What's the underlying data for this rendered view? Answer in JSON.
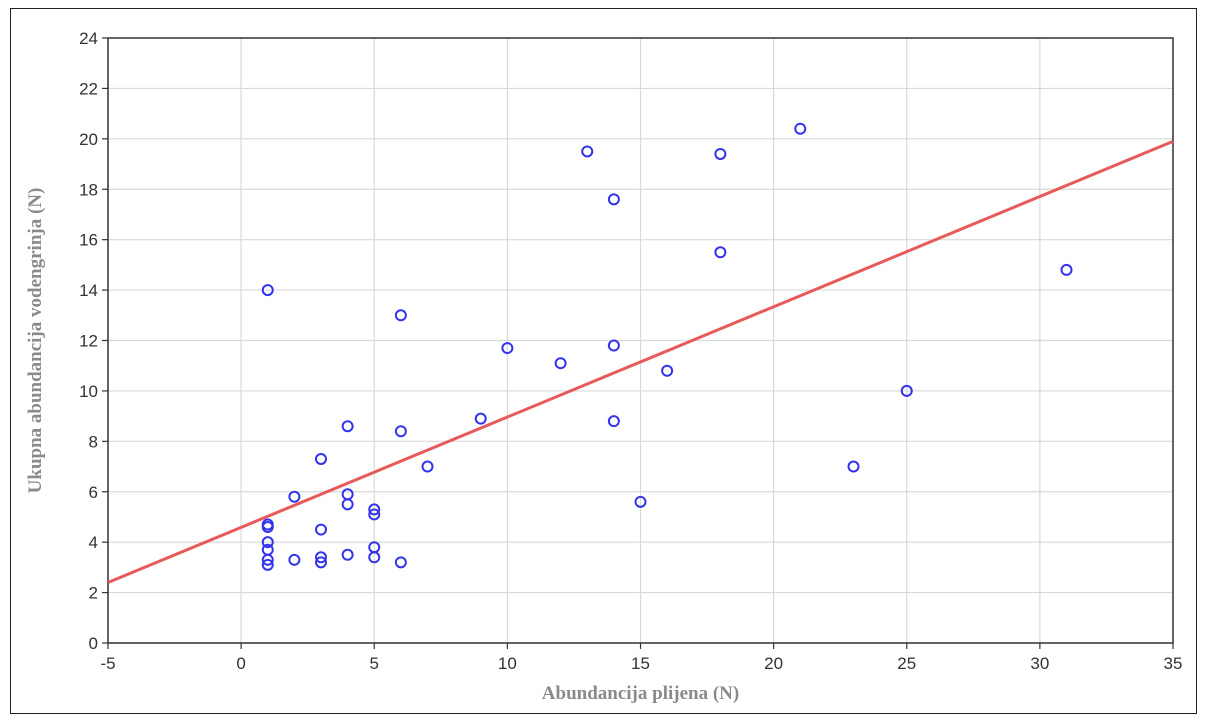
{
  "chart_data": {
    "type": "scatter",
    "title": "",
    "xlabel": "Abundancija plijena (N)",
    "ylabel": "Ukupna abundancija vodengrinja (N)",
    "xlim": [
      -5,
      35
    ],
    "ylim": [
      0,
      24
    ],
    "x_ticks": [
      -5,
      0,
      5,
      10,
      15,
      20,
      25,
      30,
      35
    ],
    "y_ticks": [
      0,
      2,
      4,
      6,
      8,
      10,
      12,
      14,
      16,
      18,
      20,
      22,
      24
    ],
    "grid": true,
    "colors": {
      "points": "#3333ee",
      "fit_line": "#e85a5a",
      "grid": "#d9d9d9"
    },
    "series": [
      {
        "points": [
          [
            1,
            14.0
          ],
          [
            1,
            4.7
          ],
          [
            1,
            4.6
          ],
          [
            1,
            4.0
          ],
          [
            1,
            3.7
          ],
          [
            1,
            3.3
          ],
          [
            1,
            3.1
          ],
          [
            2,
            5.8
          ],
          [
            2,
            3.3
          ],
          [
            3,
            7.3
          ],
          [
            3,
            4.5
          ],
          [
            3,
            3.4
          ],
          [
            3,
            3.2
          ],
          [
            4,
            8.6
          ],
          [
            4,
            5.9
          ],
          [
            4,
            5.5
          ],
          [
            4,
            3.5
          ],
          [
            5,
            5.3
          ],
          [
            5,
            5.1
          ],
          [
            5,
            3.8
          ],
          [
            5,
            3.4
          ],
          [
            6,
            13.0
          ],
          [
            6,
            8.4
          ],
          [
            6,
            3.2
          ],
          [
            7,
            7.0
          ],
          [
            9,
            8.9
          ],
          [
            10,
            11.7
          ],
          [
            12,
            11.1
          ],
          [
            13,
            19.5
          ],
          [
            14,
            17.6
          ],
          [
            14,
            11.8
          ],
          [
            14,
            8.8
          ],
          [
            15,
            5.6
          ],
          [
            16,
            10.8
          ],
          [
            18,
            19.4
          ],
          [
            18,
            15.5
          ],
          [
            21,
            20.4
          ],
          [
            23,
            7.0
          ],
          [
            25,
            10.0
          ],
          [
            31,
            14.8
          ]
        ]
      }
    ],
    "fit_line": {
      "x": [
        -5,
        35
      ],
      "y": [
        2.4,
        19.9
      ]
    }
  }
}
